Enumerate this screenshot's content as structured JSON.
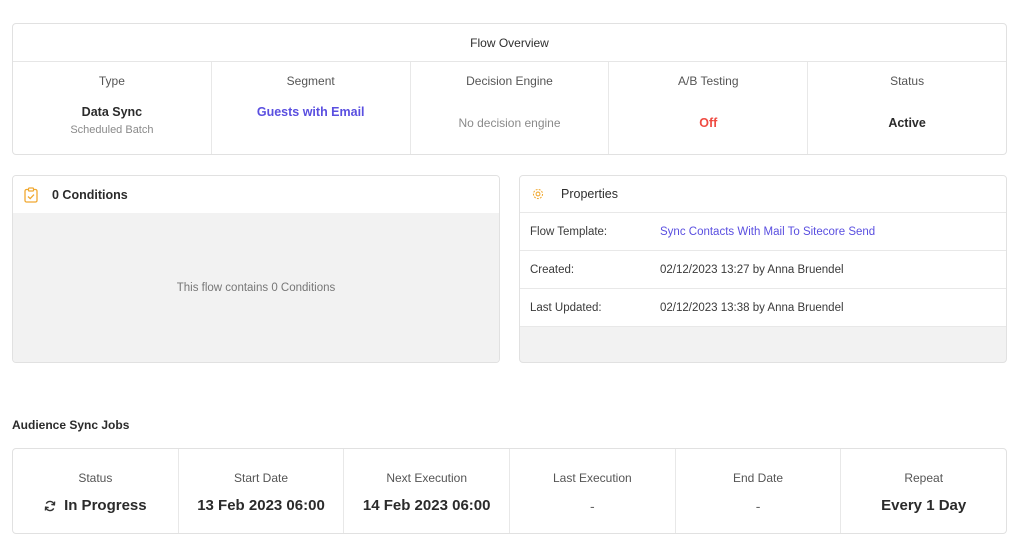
{
  "overview": {
    "title": "Flow Overview",
    "type": {
      "label": "Type",
      "value": "Data Sync",
      "sub": "Scheduled Batch"
    },
    "segment": {
      "label": "Segment",
      "value": "Guests with Email"
    },
    "decision_engine": {
      "label": "Decision Engine",
      "value": "No decision engine"
    },
    "ab_testing": {
      "label": "A/B Testing",
      "value": "Off"
    },
    "status": {
      "label": "Status",
      "value": "Active"
    }
  },
  "conditions": {
    "title": "0 Conditions",
    "empty_text": "This flow contains 0 Conditions",
    "icon": "clipboard-check-icon"
  },
  "properties": {
    "title": "Properties",
    "icon": "gear-icon",
    "rows": [
      {
        "key": "Flow Template:",
        "value": "Sync Contacts With Mail To Sitecore Send"
      },
      {
        "key": "Created:",
        "value": "02/12/2023 13:27 by Anna Bruendel"
      },
      {
        "key": "Last Updated:",
        "value": "02/12/2023 13:38 by Anna Bruendel"
      }
    ]
  },
  "sync": {
    "title": "Audience Sync Jobs",
    "status": {
      "label": "Status",
      "value": "In Progress",
      "icon": "refresh-icon"
    },
    "start_date": {
      "label": "Start Date",
      "value": "13 Feb 2023 06:00"
    },
    "next_execution": {
      "label": "Next Execution",
      "value": "14 Feb 2023 06:00"
    },
    "last_execution": {
      "label": "Last Execution",
      "value": "-"
    },
    "end_date": {
      "label": "End Date",
      "value": "-"
    },
    "repeat": {
      "label": "Repeat",
      "value": "Every 1 Day"
    }
  },
  "colors": {
    "link": "#5a4fe0",
    "off": "#ef4b42",
    "icon_accent": "#f0a830",
    "panel_bg": "#f2f2f2"
  }
}
